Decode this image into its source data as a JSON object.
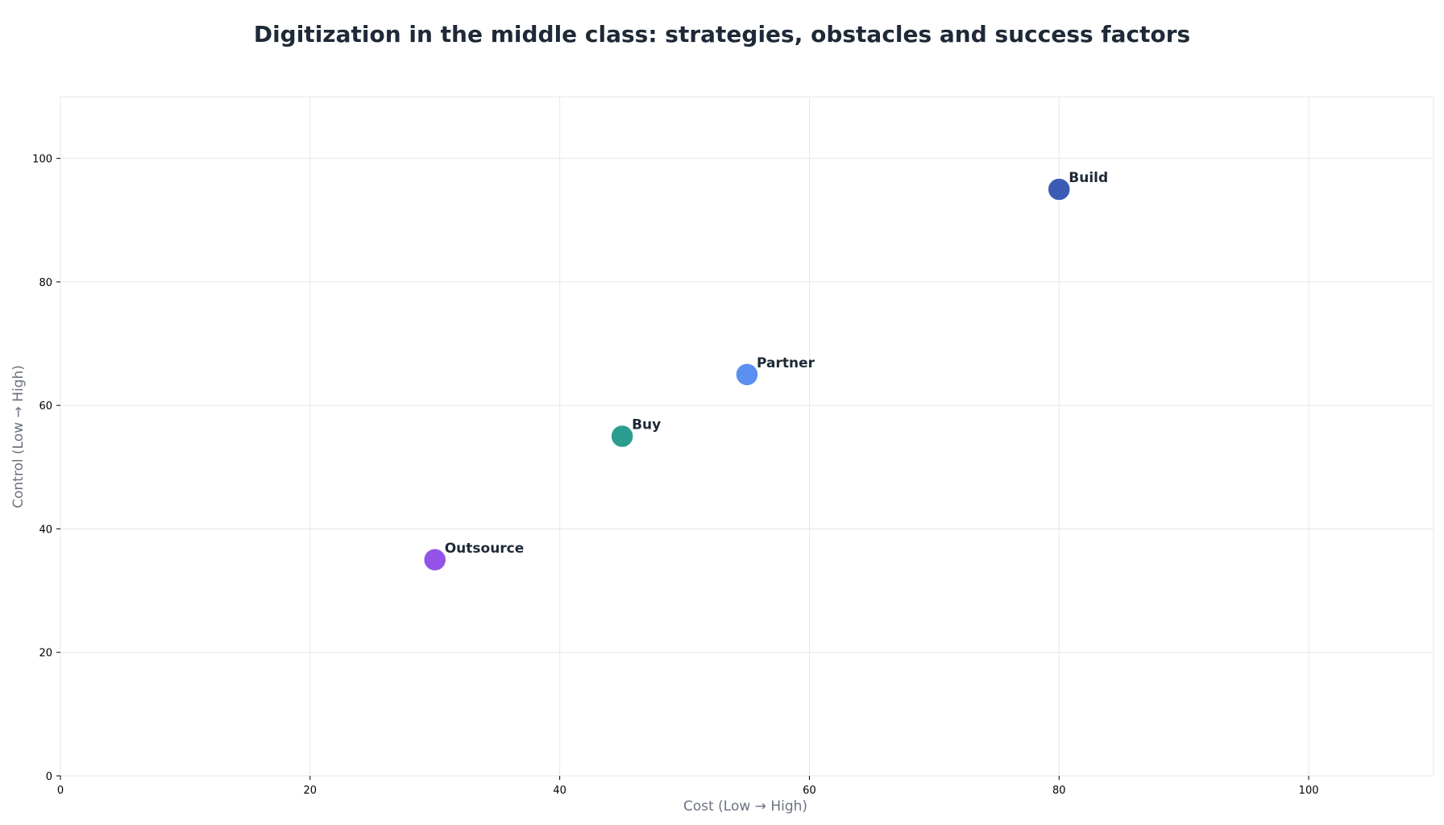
{
  "chart_data": {
    "type": "scatter",
    "title": "Digitization in the middle class: strategies, obstacles and success factors",
    "xlabel": "Cost (Low → High)",
    "ylabel": "Control (Low → High)",
    "xlim": [
      0,
      110
    ],
    "ylim": [
      0,
      110
    ],
    "xticks": [
      0,
      20,
      40,
      60,
      80,
      100
    ],
    "yticks": [
      0,
      20,
      40,
      60,
      80,
      100
    ],
    "grid": true,
    "points": [
      {
        "label": "Build",
        "x": 80,
        "y": 95,
        "color": "#3b5bb5"
      },
      {
        "label": "Partner",
        "x": 55,
        "y": 65,
        "color": "#5b8ff0"
      },
      {
        "label": "Buy",
        "x": 45,
        "y": 55,
        "color": "#2a9d8f"
      },
      {
        "label": "Outsource",
        "x": 30,
        "y": 35,
        "color": "#9353e8"
      }
    ]
  }
}
